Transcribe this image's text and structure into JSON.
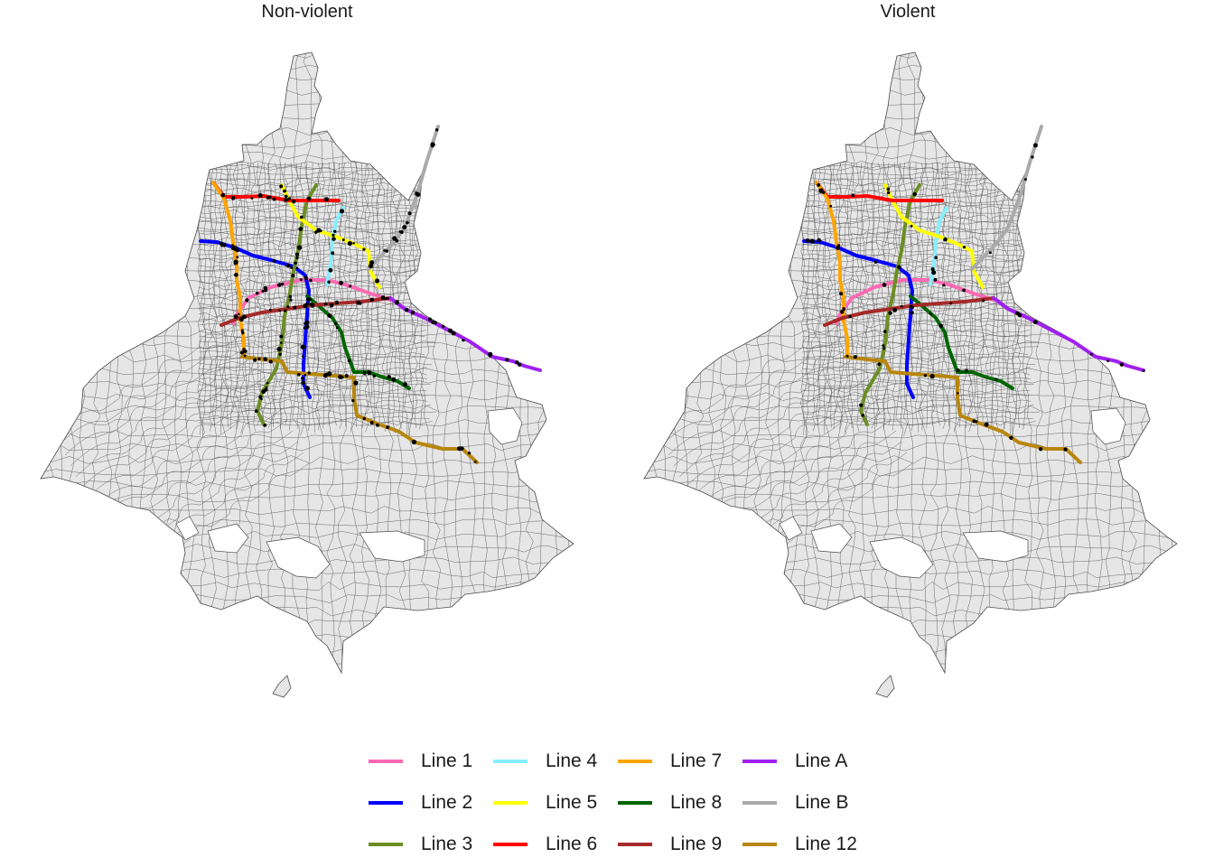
{
  "panels": [
    {
      "title": "Non-violent"
    },
    {
      "title": "Violent"
    }
  ],
  "legend": {
    "items": [
      {
        "label": "Line 1",
        "color": "#ff69b4"
      },
      {
        "label": "Line 2",
        "color": "#0000ff"
      },
      {
        "label": "Line 3",
        "color": "#6b8e23"
      },
      {
        "label": "Line 4",
        "color": "#87eeff"
      },
      {
        "label": "Line 5",
        "color": "#ffff00"
      },
      {
        "label": "Line 6",
        "color": "#ff0000"
      },
      {
        "label": "Line 7",
        "color": "#ffa500"
      },
      {
        "label": "Line 8",
        "color": "#006400"
      },
      {
        "label": "Line 9",
        "color": "#a52a2a"
      },
      {
        "label": "Line A",
        "color": "#a020f0"
      },
      {
        "label": "Line B",
        "color": "#aaaaaa"
      },
      {
        "label": "Line 12",
        "color": "#b8860b"
      }
    ]
  }
}
